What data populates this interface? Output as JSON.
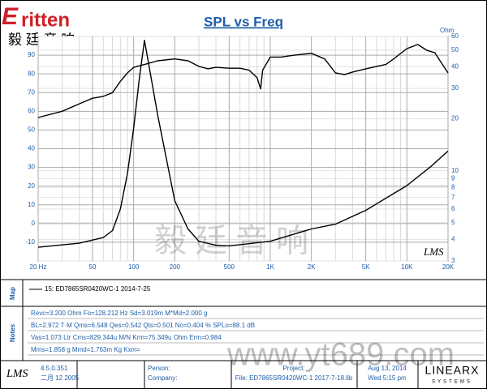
{
  "chart_data": {
    "type": "line",
    "title": "SPL vs Freq",
    "y2_label": "Ohm",
    "plot_logo": "LMS",
    "xlim": [
      20,
      20000
    ],
    "xscale": "log",
    "xticks": [
      {
        "value": 20,
        "label": "20 Hz"
      },
      50,
      100,
      200,
      500,
      {
        "value": 1000,
        "label": "1K"
      },
      {
        "value": 2000,
        "label": "2K"
      },
      {
        "value": 5000,
        "label": "5K"
      },
      {
        "value": 10000,
        "label": "10K"
      },
      {
        "value": 20000,
        "label": "20K"
      }
    ],
    "xminorticks": [
      30,
      40,
      60,
      70,
      80,
      90,
      300,
      400,
      600,
      700,
      800,
      900,
      3000,
      4000,
      6000,
      7000,
      8000,
      9000
    ],
    "ylim": [
      -20,
      100
    ],
    "yticks": [
      -10,
      0,
      10,
      20,
      30,
      40,
      50,
      60,
      70,
      80,
      90
    ],
    "y2lim": [
      3,
      60
    ],
    "y2scale": "log",
    "y2ticks": [
      3,
      4,
      5,
      6,
      7,
      8,
      9,
      10,
      20,
      30,
      40,
      50,
      60
    ],
    "grid": true,
    "series": [
      {
        "color": "#000000",
        "axis": "y",
        "x": [
          20,
          30,
          40,
          50,
          60,
          70,
          80,
          90,
          100,
          120,
          150,
          200,
          250,
          300,
          350,
          400,
          500,
          600,
          700,
          800,
          850,
          880,
          1000,
          1200,
          1500,
          2000,
          2500,
          3000,
          3500,
          4000,
          5000,
          6000,
          7000,
          8000,
          10000,
          12000,
          14000,
          16000,
          20000
        ],
        "values": [
          56.7,
          60,
          64,
          67,
          68,
          70,
          76,
          80.5,
          83.5,
          85,
          87,
          88,
          87,
          84,
          82.7,
          83.5,
          83,
          83,
          82,
          78,
          72,
          82,
          89,
          89,
          90,
          91,
          88,
          80.5,
          79.6,
          81,
          82.7,
          84,
          85,
          88,
          93.5,
          95.7,
          92.6,
          91.3,
          80.5
        ]
      },
      {
        "color": "#000000",
        "axis": "y2",
        "x": [
          20,
          40,
          60,
          70,
          80,
          90,
          100,
          110,
          120,
          130,
          150,
          200,
          250,
          300,
          400,
          500,
          1000,
          2000,
          3000,
          5000,
          10000,
          15000,
          20000
        ],
        "values": [
          3.6,
          3.8,
          4.1,
          4.5,
          6,
          9.6,
          17.7,
          34,
          57,
          40,
          21,
          6.7,
          4.6,
          3.9,
          3.7,
          3.67,
          3.9,
          4.6,
          4.9,
          5.9,
          8.2,
          10.6,
          13
        ]
      }
    ]
  },
  "logo": {
    "brand": "ritten",
    "brand_initial": "E",
    "chinese": "毅 廷 音 响"
  },
  "watermark": {
    "chinese": "毅廷音响",
    "url": "www.yt689.com"
  },
  "map": {
    "label": "Map",
    "legend": "15: ED7865SR0420WC-1    2014-7-25"
  },
  "notes": {
    "label": "Notes",
    "lines": [
      "Revc=3.200 Ohm  Fo=128.212 Hz  Sd=3.019m M*Md=2.000 g",
      "BL=2.972 T·M  Qms=6.548  Qes=0.542  Qts=0.501  No=0.404 %  SPLo=88.1 dB",
      "Vas=1.073 Ltr  Cms=829.344u M/N  Krm=75.349u Ohm  Erm=0.984",
      "Mms=1.858 g  Mmd=1.763m Kg  Kxm="
    ]
  },
  "footer": {
    "logo": "LMS",
    "version": "4.5.0.351",
    "date": "二月 12 2005",
    "person": "Person:",
    "company": "Company:",
    "project": "Project:",
    "file": "File: ED7865SR0420WC-1    2017-7-18.lib",
    "print_date": "Aug 13, 2014",
    "print_time": "Wed  5:15 pm",
    "brand": "LINEARX",
    "brand_sub": "SYSTEMS"
  }
}
